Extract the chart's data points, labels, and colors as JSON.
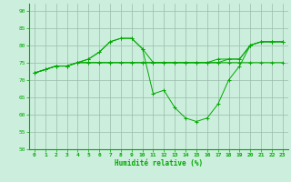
{
  "title": "",
  "xlabel": "Humidité relative (%)",
  "ylabel": "",
  "bg_color": "#cceedd",
  "grid_color": "#99bbaa",
  "line_color": "#00aa00",
  "marker": "+",
  "xlim": [
    -0.5,
    23.5
  ],
  "ylim": [
    50,
    92
  ],
  "yticks": [
    50,
    55,
    60,
    65,
    70,
    75,
    80,
    85,
    90
  ],
  "xticks": [
    0,
    1,
    2,
    3,
    4,
    5,
    6,
    7,
    8,
    9,
    10,
    11,
    12,
    13,
    14,
    15,
    16,
    17,
    18,
    19,
    20,
    21,
    22,
    23
  ],
  "series": [
    [
      72,
      73,
      74,
      74,
      75,
      75,
      75,
      75,
      75,
      75,
      75,
      75,
      75,
      75,
      75,
      75,
      75,
      75,
      75,
      75,
      75,
      75,
      75,
      75
    ],
    [
      72,
      73,
      74,
      74,
      75,
      76,
      78,
      81,
      82,
      82,
      79,
      66,
      67,
      62,
      59,
      58,
      59,
      63,
      70,
      74,
      80,
      81,
      81,
      81
    ],
    [
      72,
      73,
      74,
      74,
      75,
      76,
      78,
      81,
      82,
      82,
      79,
      75,
      75,
      75,
      75,
      75,
      75,
      76,
      76,
      76,
      80,
      81,
      81,
      81
    ],
    [
      72,
      73,
      74,
      74,
      75,
      75,
      75,
      75,
      75,
      75,
      75,
      75,
      75,
      75,
      75,
      75,
      75,
      75,
      76,
      76,
      80,
      81,
      81,
      81
    ]
  ]
}
